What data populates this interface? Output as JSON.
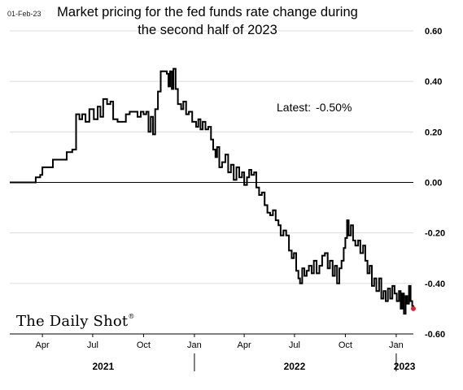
{
  "date_stamp": "01-Feb-23",
  "title_line1": "Market pricing for the fed funds rate change during",
  "title_line2": "the second half of 2023",
  "annotation": {
    "label": "Latest:",
    "value": "-0.50%"
  },
  "logo": {
    "text": "The Daily Shot",
    "mark": "®"
  },
  "colors": {
    "line": "#000000",
    "latest_dot": "#e0202a",
    "zero_line": "#000000",
    "grid": "#dcdcdc"
  },
  "chart_data": {
    "type": "line",
    "title": "Market pricing for the fed funds rate change during the second half of 2023",
    "ylim": [
      -0.6,
      0.6
    ],
    "y_ticks": [
      0.6,
      0.4,
      0.2,
      0.0,
      -0.2,
      -0.4,
      -0.6
    ],
    "y_tick_labels": [
      "0.60",
      "0.40",
      "0.20",
      "0.00",
      "-0.20",
      "-0.40",
      "-0.60"
    ],
    "x_range": [
      "2021-02-01",
      "2023-02-01"
    ],
    "x_ticks": [
      {
        "date": "2021-04-01",
        "label": "Apr"
      },
      {
        "date": "2021-07-01",
        "label": "Jul"
      },
      {
        "date": "2021-10-01",
        "label": "Oct"
      },
      {
        "date": "2022-01-01",
        "label": "Jan"
      },
      {
        "date": "2022-04-01",
        "label": "Apr"
      },
      {
        "date": "2022-07-01",
        "label": "Jul"
      },
      {
        "date": "2022-10-01",
        "label": "Oct"
      },
      {
        "date": "2023-01-01",
        "label": "Jan"
      }
    ],
    "years": [
      {
        "label": "2021",
        "center": "2021-07-20"
      },
      {
        "label": "2022",
        "center": "2022-07-01"
      },
      {
        "label": "2023",
        "center": "2023-01-16"
      }
    ],
    "year_separators": [
      "2022-01-01",
      "2023-01-01"
    ],
    "zero_line": 0.0,
    "latest": {
      "date": "2023-02-01",
      "value": -0.5
    },
    "series": [
      {
        "points": [
          [
            "2021-02-01",
            0.0
          ],
          [
            "2021-03-15",
            0.0
          ],
          [
            "2021-03-20",
            0.02
          ],
          [
            "2021-03-28",
            0.03
          ],
          [
            "2021-04-01",
            0.06
          ],
          [
            "2021-04-15",
            0.06
          ],
          [
            "2021-04-20",
            0.09
          ],
          [
            "2021-05-05",
            0.09
          ],
          [
            "2021-05-10",
            0.09
          ],
          [
            "2021-05-15",
            0.12
          ],
          [
            "2021-05-25",
            0.13
          ],
          [
            "2021-06-01",
            0.27
          ],
          [
            "2021-06-07",
            0.25
          ],
          [
            "2021-06-12",
            0.27
          ],
          [
            "2021-06-18",
            0.24
          ],
          [
            "2021-06-25",
            0.29
          ],
          [
            "2021-07-03",
            0.25
          ],
          [
            "2021-07-10",
            0.3
          ],
          [
            "2021-07-15",
            0.26
          ],
          [
            "2021-07-20",
            0.33
          ],
          [
            "2021-07-27",
            0.31
          ],
          [
            "2021-08-02",
            0.32
          ],
          [
            "2021-08-07",
            0.25
          ],
          [
            "2021-08-15",
            0.24
          ],
          [
            "2021-08-23",
            0.24
          ],
          [
            "2021-08-30",
            0.27
          ],
          [
            "2021-09-06",
            0.28
          ],
          [
            "2021-09-12",
            0.28
          ],
          [
            "2021-09-20",
            0.26
          ],
          [
            "2021-09-26",
            0.28
          ],
          [
            "2021-10-01",
            0.27
          ],
          [
            "2021-10-06",
            0.28
          ],
          [
            "2021-10-10",
            0.2
          ],
          [
            "2021-10-14",
            0.26
          ],
          [
            "2021-10-18",
            0.19
          ],
          [
            "2021-10-22",
            0.29
          ],
          [
            "2021-10-27",
            0.36
          ],
          [
            "2021-11-01",
            0.44
          ],
          [
            "2021-11-08",
            0.44
          ],
          [
            "2021-11-12",
            0.43
          ],
          [
            "2021-11-15",
            0.38
          ],
          [
            "2021-11-18",
            0.44
          ],
          [
            "2021-11-21",
            0.37
          ],
          [
            "2021-11-24",
            0.45
          ],
          [
            "2021-11-28",
            0.37
          ],
          [
            "2021-12-02",
            0.31
          ],
          [
            "2021-12-08",
            0.29
          ],
          [
            "2021-12-12",
            0.32
          ],
          [
            "2021-12-17",
            0.27
          ],
          [
            "2021-12-22",
            0.28
          ],
          [
            "2021-12-28",
            0.24
          ],
          [
            "2022-01-04",
            0.22
          ],
          [
            "2022-01-08",
            0.25
          ],
          [
            "2022-01-12",
            0.21
          ],
          [
            "2022-01-16",
            0.24
          ],
          [
            "2022-01-21",
            0.21
          ],
          [
            "2022-01-26",
            0.22
          ],
          [
            "2022-01-31",
            0.17
          ],
          [
            "2022-02-04",
            0.13
          ],
          [
            "2022-02-08",
            0.1
          ],
          [
            "2022-02-11",
            0.14
          ],
          [
            "2022-02-15",
            0.06
          ],
          [
            "2022-02-20",
            0.08
          ],
          [
            "2022-02-26",
            0.11
          ],
          [
            "2022-03-03",
            0.04
          ],
          [
            "2022-03-08",
            0.07
          ],
          [
            "2022-03-13",
            0.01
          ],
          [
            "2022-03-18",
            0.06
          ],
          [
            "2022-03-23",
            0.02
          ],
          [
            "2022-03-28",
            0.04
          ],
          [
            "2022-04-01",
            -0.01
          ],
          [
            "2022-04-06",
            0.02
          ],
          [
            "2022-04-10",
            0.05
          ],
          [
            "2022-04-14",
            0.03
          ],
          [
            "2022-04-19",
            0.04
          ],
          [
            "2022-04-23",
            -0.02
          ],
          [
            "2022-04-28",
            -0.05
          ],
          [
            "2022-05-03",
            -0.04
          ],
          [
            "2022-05-08",
            -0.09
          ],
          [
            "2022-05-13",
            -0.12
          ],
          [
            "2022-05-18",
            -0.13
          ],
          [
            "2022-05-23",
            -0.11
          ],
          [
            "2022-05-28",
            -0.15
          ],
          [
            "2022-06-02",
            -0.17
          ],
          [
            "2022-06-06",
            -0.21
          ],
          [
            "2022-06-11",
            -0.19
          ],
          [
            "2022-06-16",
            -0.21
          ],
          [
            "2022-06-21",
            -0.27
          ],
          [
            "2022-06-26",
            -0.3
          ],
          [
            "2022-06-30",
            -0.28
          ],
          [
            "2022-07-04",
            -0.35
          ],
          [
            "2022-07-08",
            -0.38
          ],
          [
            "2022-07-11",
            -0.4
          ],
          [
            "2022-07-15",
            -0.34
          ],
          [
            "2022-07-19",
            -0.37
          ],
          [
            "2022-07-23",
            -0.35
          ],
          [
            "2022-07-27",
            -0.33
          ],
          [
            "2022-08-01",
            -0.36
          ],
          [
            "2022-08-05",
            -0.31
          ],
          [
            "2022-08-10",
            -0.36
          ],
          [
            "2022-08-15",
            -0.33
          ],
          [
            "2022-08-20",
            -0.29
          ],
          [
            "2022-08-25",
            -0.28
          ],
          [
            "2022-08-30",
            -0.34
          ],
          [
            "2022-09-03",
            -0.31
          ],
          [
            "2022-09-08",
            -0.37
          ],
          [
            "2022-09-12",
            -0.33
          ],
          [
            "2022-09-16",
            -0.4
          ],
          [
            "2022-09-20",
            -0.34
          ],
          [
            "2022-09-24",
            -0.31
          ],
          [
            "2022-09-28",
            -0.26
          ],
          [
            "2022-10-01",
            -0.22
          ],
          [
            "2022-10-04",
            -0.15
          ],
          [
            "2022-10-07",
            -0.21
          ],
          [
            "2022-10-11",
            -0.17
          ],
          [
            "2022-10-15",
            -0.23
          ],
          [
            "2022-10-19",
            -0.25
          ],
          [
            "2022-10-24",
            -0.23
          ],
          [
            "2022-10-28",
            -0.28
          ],
          [
            "2022-11-02",
            -0.25
          ],
          [
            "2022-11-06",
            -0.31
          ],
          [
            "2022-11-10",
            -0.36
          ],
          [
            "2022-11-14",
            -0.33
          ],
          [
            "2022-11-18",
            -0.41
          ],
          [
            "2022-11-22",
            -0.38
          ],
          [
            "2022-11-26",
            -0.43
          ],
          [
            "2022-12-01",
            -0.38
          ],
          [
            "2022-12-05",
            -0.46
          ],
          [
            "2022-12-09",
            -0.43
          ],
          [
            "2022-12-13",
            -0.47
          ],
          [
            "2022-12-17",
            -0.42
          ],
          [
            "2022-12-21",
            -0.46
          ],
          [
            "2022-12-25",
            -0.41
          ],
          [
            "2022-12-29",
            -0.44
          ],
          [
            "2023-01-02",
            -0.47
          ],
          [
            "2023-01-06",
            -0.43
          ],
          [
            "2023-01-09",
            -0.5
          ],
          [
            "2023-01-12",
            -0.44
          ],
          [
            "2023-01-15",
            -0.52
          ],
          [
            "2023-01-18",
            -0.45
          ],
          [
            "2023-01-21",
            -0.48
          ],
          [
            "2023-01-24",
            -0.41
          ],
          [
            "2023-01-27",
            -0.47
          ],
          [
            "2023-01-30",
            -0.49
          ],
          [
            "2023-02-01",
            -0.5
          ]
        ]
      }
    ]
  }
}
